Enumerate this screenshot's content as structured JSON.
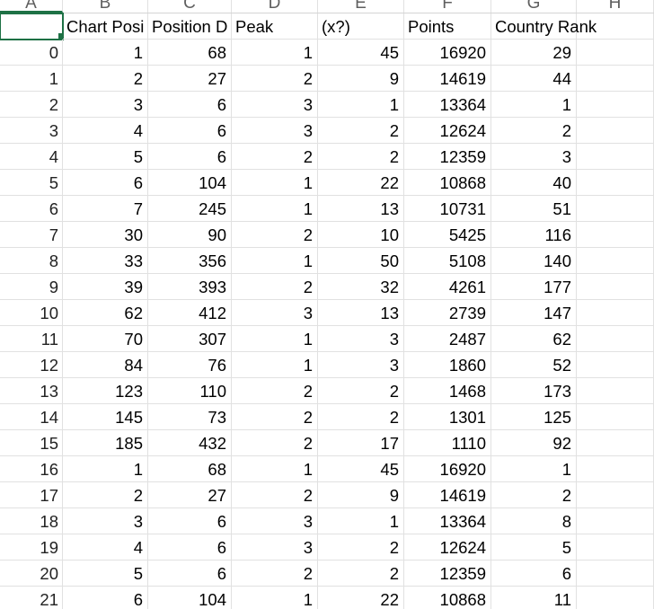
{
  "columns": [
    "A",
    "B",
    "C",
    "D",
    "E",
    "F",
    "G",
    "H"
  ],
  "header": [
    "",
    "Chart Posi",
    "Position D",
    "Peak",
    "(x?)",
    "Points",
    "Country Rank"
  ],
  "rows": [
    [
      "0",
      "1",
      "68",
      "1",
      "45",
      "16920",
      "29"
    ],
    [
      "1",
      "2",
      "27",
      "2",
      "9",
      "14619",
      "44"
    ],
    [
      "2",
      "3",
      "6",
      "3",
      "1",
      "13364",
      "1"
    ],
    [
      "3",
      "4",
      "6",
      "3",
      "2",
      "12624",
      "2"
    ],
    [
      "4",
      "5",
      "6",
      "2",
      "2",
      "12359",
      "3"
    ],
    [
      "5",
      "6",
      "104",
      "1",
      "22",
      "10868",
      "40"
    ],
    [
      "6",
      "7",
      "245",
      "1",
      "13",
      "10731",
      "51"
    ],
    [
      "7",
      "30",
      "90",
      "2",
      "10",
      "5425",
      "116"
    ],
    [
      "8",
      "33",
      "356",
      "1",
      "50",
      "5108",
      "140"
    ],
    [
      "9",
      "39",
      "393",
      "2",
      "32",
      "4261",
      "177"
    ],
    [
      "10",
      "62",
      "412",
      "3",
      "13",
      "2739",
      "147"
    ],
    [
      "11",
      "70",
      "307",
      "1",
      "3",
      "2487",
      "62"
    ],
    [
      "12",
      "84",
      "76",
      "1",
      "3",
      "1860",
      "52"
    ],
    [
      "13",
      "123",
      "110",
      "2",
      "2",
      "1468",
      "173"
    ],
    [
      "14",
      "145",
      "73",
      "2",
      "2",
      "1301",
      "125"
    ],
    [
      "15",
      "185",
      "432",
      "2",
      "17",
      "1110",
      "92"
    ],
    [
      "16",
      "1",
      "68",
      "1",
      "45",
      "16920",
      "1"
    ],
    [
      "17",
      "2",
      "27",
      "2",
      "9",
      "14619",
      "2"
    ],
    [
      "18",
      "3",
      "6",
      "3",
      "1",
      "13364",
      "8"
    ],
    [
      "19",
      "4",
      "6",
      "3",
      "2",
      "12624",
      "5"
    ],
    [
      "20",
      "5",
      "6",
      "2",
      "2",
      "12359",
      "6"
    ],
    [
      "21",
      "6",
      "104",
      "1",
      "22",
      "10868",
      "11"
    ]
  ]
}
